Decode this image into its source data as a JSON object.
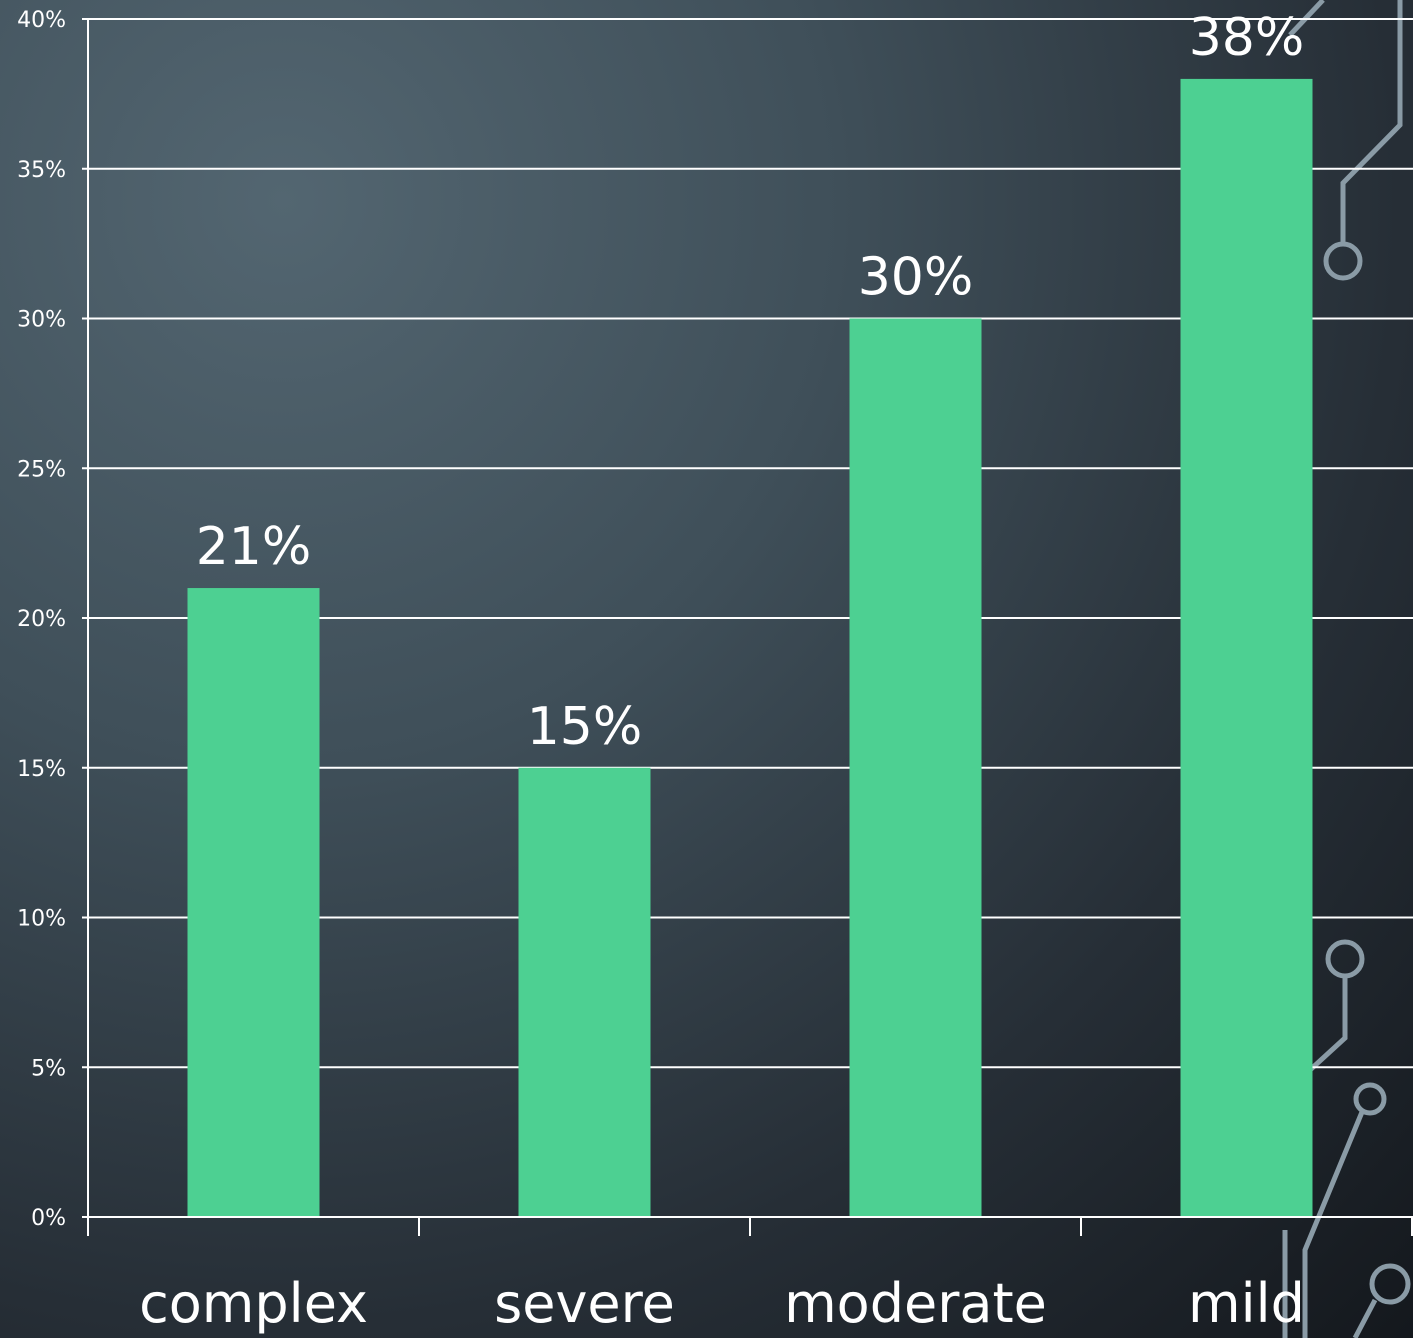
{
  "chart_data": {
    "type": "bar",
    "categories": [
      "complex",
      "severe",
      "moderate",
      "mild"
    ],
    "values": [
      21,
      15,
      30,
      38
    ],
    "value_labels": [
      "21%",
      "15%",
      "30%",
      "38%"
    ],
    "ylim": [
      0,
      40
    ],
    "y_ticks": [
      0,
      5,
      10,
      15,
      20,
      25,
      30,
      35,
      40
    ],
    "y_tick_labels": [
      "0%",
      "5%",
      "10%",
      "15%",
      "20%",
      "25%",
      "30%",
      "35%",
      "40%"
    ],
    "grid": true,
    "bar_color": "#4dd092",
    "text_color": "#ffffff"
  }
}
